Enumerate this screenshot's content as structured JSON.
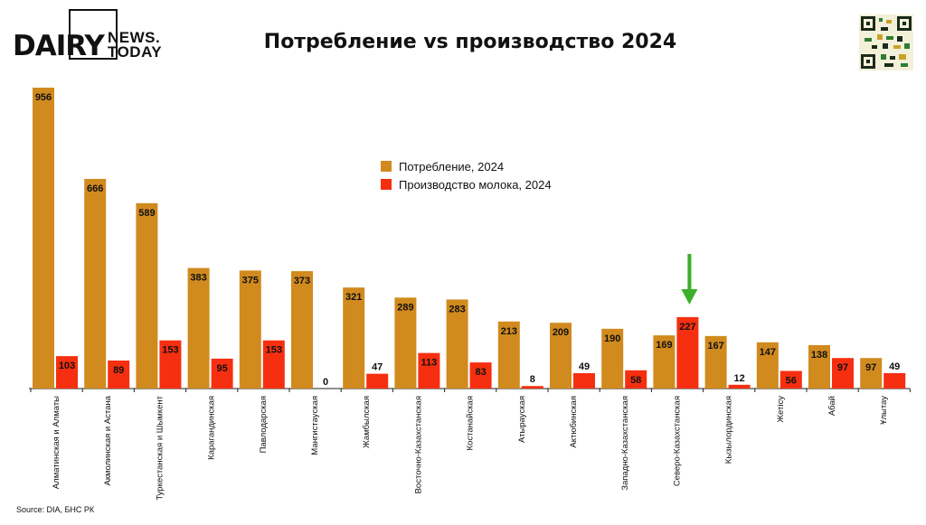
{
  "header": {
    "title": "Потребление vs производство 2024",
    "logo_main": "DAIRY",
    "logo_news": "NEWS.",
    "logo_today": "TODAY"
  },
  "footer": {
    "source": "Source: DIA, БНС РК"
  },
  "colors": {
    "consumption": "#D18A1E",
    "production": "#F62F10",
    "arrow": "#3DAE2B"
  },
  "chart_data": {
    "type": "bar",
    "title": "Потребление vs производство 2024",
    "categories": [
      "Алматинская и Алматы",
      "Акмолинская и Астана",
      "Туркестанская и Шымкент",
      "Карагандинская",
      "Павлодарская",
      "Мангистауская",
      "Жамбылская",
      "Восточно-Казахстанская",
      "Костанайская",
      "Атырауская",
      "Актюбинская",
      "Западно-Казахстанская",
      "Северо-Казахстанская",
      "Кызылординская",
      "Жетiсу",
      "Абай",
      "Ұлытау"
    ],
    "series": [
      {
        "name": "Потребление, 2024",
        "values": [
          956,
          666,
          589,
          383,
          375,
          373,
          321,
          289,
          283,
          213,
          209,
          190,
          169,
          167,
          147,
          138,
          97
        ]
      },
      {
        "name": "Производство молока, 2024",
        "values": [
          103,
          89,
          153,
          95,
          153,
          0,
          47,
          113,
          83,
          8,
          49,
          58,
          227,
          12,
          56,
          97,
          49
        ]
      }
    ],
    "ylim": [
      0,
      956
    ],
    "grid": false,
    "legend_placement": "center",
    "highlight_category": "Северо-Казахстанская"
  }
}
